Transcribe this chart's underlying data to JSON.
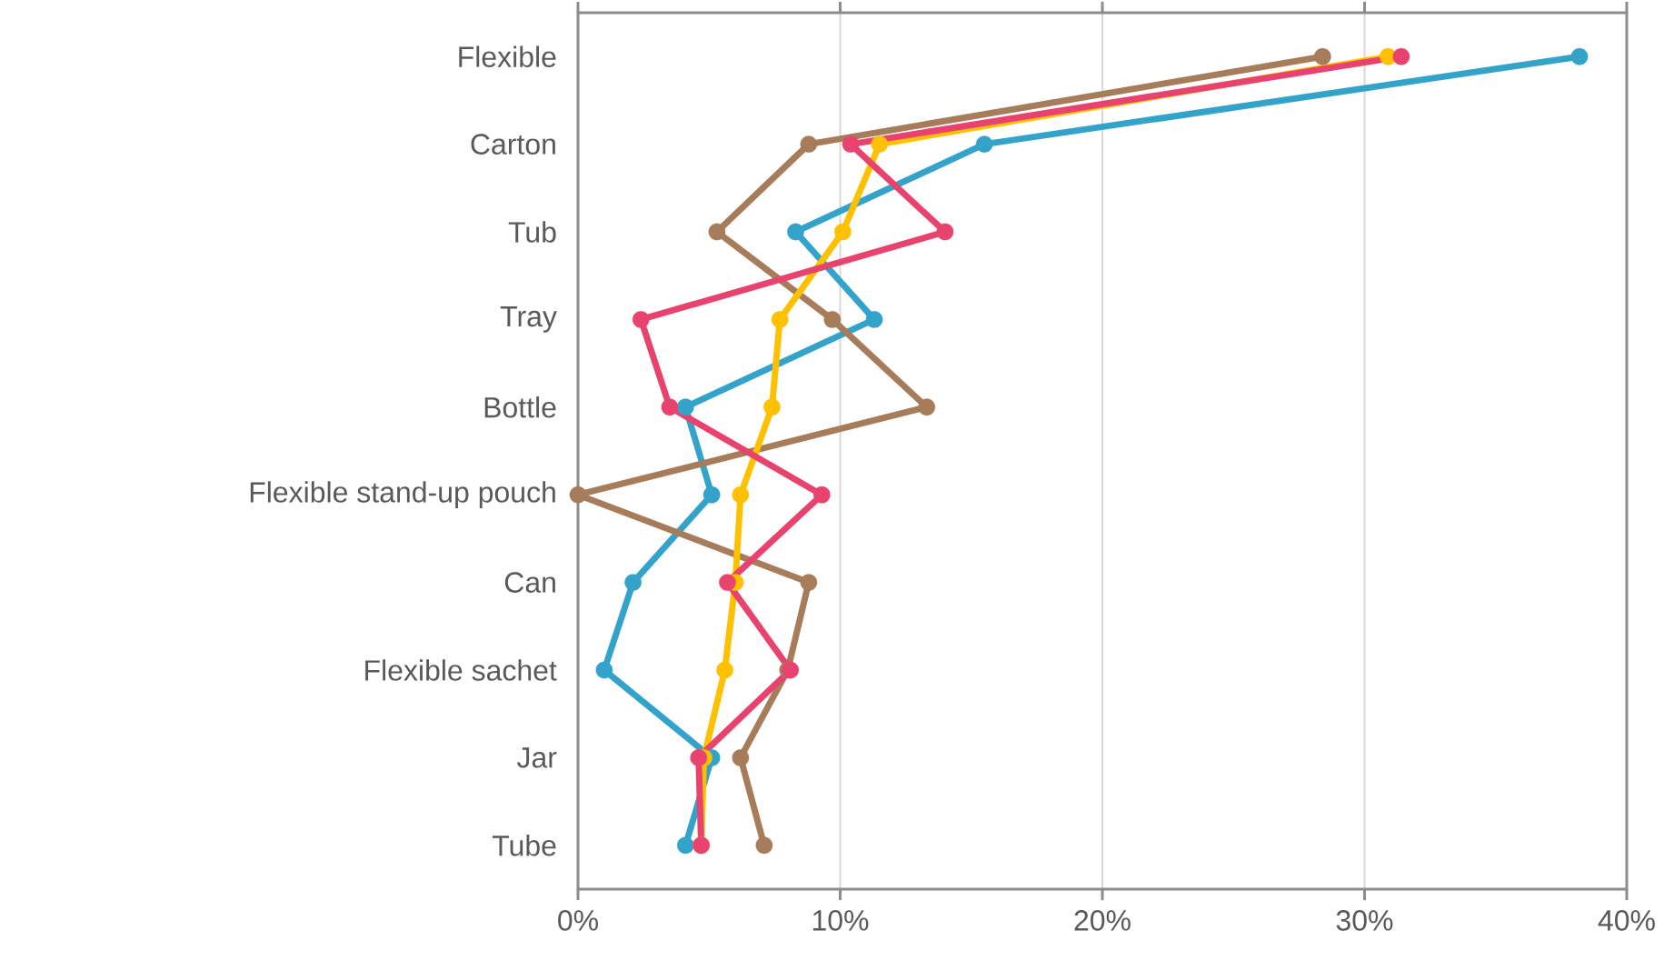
{
  "chart_data": {
    "type": "line",
    "orientation": "horizontal",
    "categories": [
      "Flexible",
      "Carton",
      "Tub",
      "Tray",
      "Bottle",
      "Flexible stand-up pouch",
      "Can",
      "Flexible sachet",
      "Jar",
      "Tube"
    ],
    "series": [
      {
        "color": "#34a3c9",
        "values": [
          38.2,
          15.5,
          8.3,
          11.3,
          4.1,
          5.1,
          2.1,
          1.0,
          5.1,
          4.1
        ]
      },
      {
        "color": "#a67c5b",
        "values": [
          28.4,
          8.8,
          5.3,
          9.7,
          13.3,
          0.0,
          8.8,
          8.0,
          6.2,
          7.1
        ]
      },
      {
        "color": "#ffc000",
        "values": [
          30.9,
          11.5,
          10.1,
          7.7,
          7.4,
          6.2,
          6.0,
          5.6,
          4.8,
          4.7
        ]
      },
      {
        "color": "#e8436e",
        "values": [
          31.4,
          10.4,
          14.0,
          2.4,
          3.5,
          9.3,
          5.7,
          8.1,
          4.6,
          4.7
        ]
      }
    ],
    "xlim": [
      0,
      40
    ],
    "xticks": [
      {
        "value": 0,
        "label": "0%"
      },
      {
        "value": 10,
        "label": "10%"
      },
      {
        "value": 20,
        "label": "20%"
      },
      {
        "value": 30,
        "label": "30%"
      },
      {
        "value": 40,
        "label": "40%"
      }
    ],
    "grid": "x",
    "marker": "circle",
    "line_style": "solid"
  }
}
